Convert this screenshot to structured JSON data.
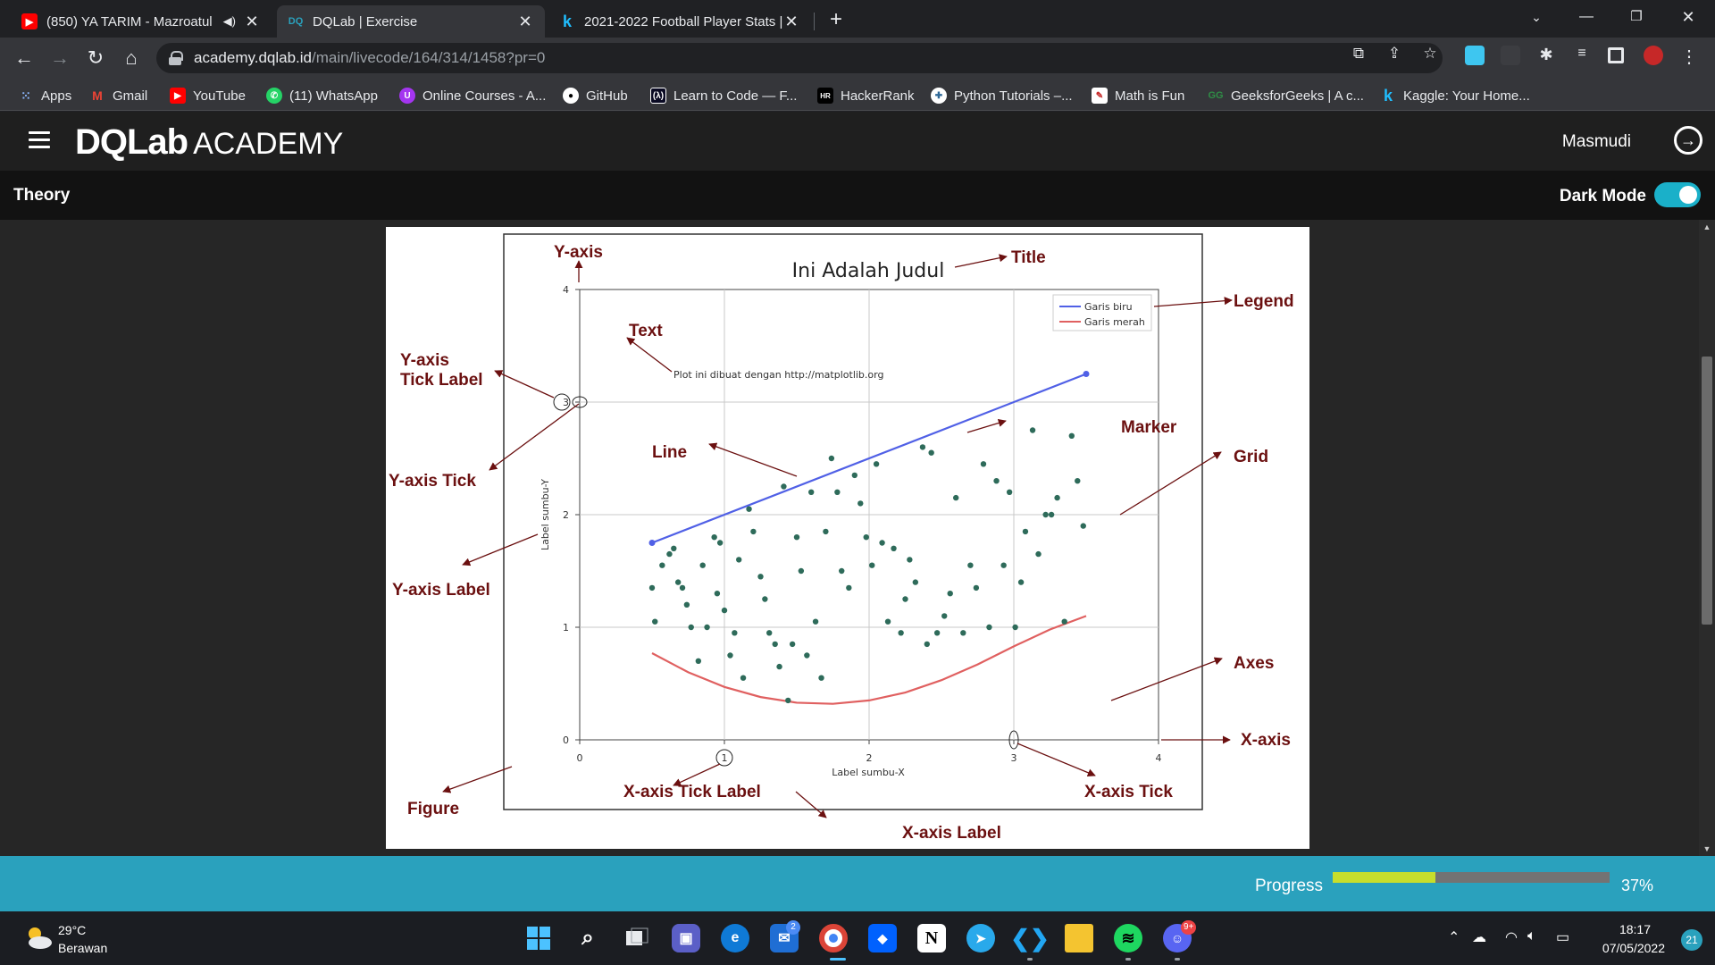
{
  "browser": {
    "tabs": [
      {
        "title": "(850) YA TARIM - Mazroatul",
        "favicon": "youtube-icon",
        "active": false,
        "audio": true
      },
      {
        "title": "DQLab | Exercise",
        "favicon": "dqlab-icon",
        "active": true
      },
      {
        "title": "2021-2022 Football Player Stats |",
        "favicon": "kaggle-icon",
        "active": false
      }
    ],
    "url_host": "academy.dqlab.id",
    "url_path": "/main/livecode/164/314/1458?pr=0",
    "bookmarks": [
      {
        "label": "Apps",
        "icon": "apps-grid-icon"
      },
      {
        "label": "Gmail",
        "icon": "gmail-icon"
      },
      {
        "label": "YouTube",
        "icon": "youtube-icon"
      },
      {
        "label": "(11) WhatsApp",
        "icon": "whatsapp-icon"
      },
      {
        "label": "Online Courses - A...",
        "icon": "udemy-icon"
      },
      {
        "label": "GitHub",
        "icon": "github-icon"
      },
      {
        "label": "Learn to Code — F...",
        "icon": "freecodecamp-icon"
      },
      {
        "label": "HackerRank",
        "icon": "hackerrank-icon"
      },
      {
        "label": "Python Tutorials –...",
        "icon": "python-icon"
      },
      {
        "label": "Math is Fun",
        "icon": "mathisfun-icon"
      },
      {
        "label": "GeeksforGeeks | A c...",
        "icon": "geeksforgeeks-icon"
      },
      {
        "label": "Kaggle: Your Home...",
        "icon": "kaggle-icon"
      }
    ]
  },
  "header": {
    "logo_main": "DQLab",
    "logo_sub": "ACADEMY",
    "user_name": "Masmudi"
  },
  "subheader": {
    "theory_label": "Theory",
    "dark_mode_label": "Dark Mode",
    "dark_mode_on": true
  },
  "figure": {
    "title": "Ini Adalah Judul",
    "xlabel": "Label sumbu-X",
    "ylabel": "Label sumbu-Y",
    "text_note": "Plot ini dibuat dengan http://matplotlib.org",
    "x_ticks": [
      "0",
      "1",
      "2",
      "3",
      "4"
    ],
    "y_ticks": [
      "0",
      "1",
      "2",
      "3",
      "4"
    ],
    "legend": [
      "Garis biru",
      "Garis merah"
    ],
    "annotations": {
      "y_axis": "Y-axis",
      "title": "Title",
      "legend": "Legend",
      "text": "Text",
      "y_tick_label": "Y-axis\nTick Label",
      "marker": "Marker",
      "line": "Line",
      "grid": "Grid",
      "y_tick": "Y-axis Tick",
      "y_label": "Y-axis Label",
      "axes": "Axes",
      "x_axis": "X-axis",
      "x_tick_label": "X-axis Tick Label",
      "x_tick": "X-axis Tick",
      "figure": "Figure",
      "x_label": "X-axis Label"
    },
    "colors": {
      "blue": "#5060e6",
      "red": "#e06060",
      "marker": "#2e6b5a",
      "annot": "#8b1a1a"
    }
  },
  "chart_data": {
    "type": "line",
    "title": "Ini Adalah Judul",
    "xlabel": "Label sumbu-X",
    "ylabel": "Label sumbu-Y",
    "xlim": [
      0,
      4
    ],
    "ylim": [
      0,
      4
    ],
    "grid": true,
    "legend_position": "top-right",
    "series": [
      {
        "name": "Garis biru",
        "type": "line",
        "color": "#5060e6",
        "x": [
          0.5,
          3.5
        ],
        "y": [
          1.75,
          3.25
        ]
      },
      {
        "name": "Garis merah",
        "type": "line",
        "color": "#e06060",
        "x": [
          0.5,
          0.75,
          1.0,
          1.25,
          1.5,
          1.75,
          2.0,
          2.25,
          2.5,
          2.75,
          3.0,
          3.25,
          3.5
        ],
        "y": [
          0.77,
          0.6,
          0.47,
          0.38,
          0.33,
          0.32,
          0.35,
          0.42,
          0.53,
          0.67,
          0.83,
          0.98,
          1.1
        ]
      },
      {
        "name": "",
        "type": "scatter",
        "color": "#2e6b5a",
        "x": [
          0.5,
          0.52,
          0.57,
          0.62,
          0.65,
          0.68,
          0.71,
          0.74,
          0.77,
          0.82,
          0.85,
          0.88,
          0.93,
          0.95,
          0.97,
          1.0,
          1.04,
          1.07,
          1.1,
          1.13,
          1.17,
          1.2,
          1.25,
          1.28,
          1.31,
          1.35,
          1.38,
          1.41,
          1.44,
          1.47,
          1.5,
          1.53,
          1.57,
          1.6,
          1.63,
          1.67,
          1.7,
          1.74,
          1.78,
          1.81,
          1.86,
          1.9,
          1.94,
          1.98,
          2.02,
          2.05,
          2.09,
          2.13,
          2.17,
          2.22,
          2.25,
          2.28,
          2.32,
          2.37,
          2.4,
          2.43,
          2.47,
          2.52,
          2.56,
          2.6,
          2.65,
          2.7,
          2.74,
          2.79,
          2.83,
          2.88,
          2.93,
          2.97,
          3.01,
          3.05,
          3.08,
          3.13,
          3.17,
          3.22,
          3.26,
          3.3,
          3.35,
          3.4,
          3.44,
          3.48
        ],
        "y": [
          1.35,
          1.05,
          1.55,
          1.65,
          1.7,
          1.4,
          1.35,
          1.2,
          1.0,
          0.7,
          1.55,
          1.0,
          1.8,
          1.3,
          1.75,
          1.15,
          0.75,
          0.95,
          1.6,
          0.55,
          2.05,
          1.85,
          1.45,
          1.25,
          0.95,
          0.85,
          0.65,
          2.25,
          0.35,
          0.85,
          1.8,
          1.5,
          0.75,
          2.2,
          1.05,
          0.55,
          1.85,
          2.5,
          2.2,
          1.5,
          1.35,
          2.35,
          2.1,
          1.8,
          1.55,
          2.45,
          1.75,
          1.05,
          1.7,
          0.95,
          1.25,
          1.6,
          1.4,
          2.6,
          0.85,
          2.55,
          0.95,
          1.1,
          1.3,
          2.15,
          0.95,
          1.55,
          1.35,
          2.45,
          1.0,
          2.3,
          1.55,
          2.2,
          1.0,
          1.4,
          1.85,
          2.75,
          1.65,
          2.0,
          2.0,
          2.15,
          1.05,
          2.7,
          2.3,
          1.9
        ]
      }
    ]
  },
  "progress": {
    "label": "Progress",
    "value": 0.37,
    "percent_text": "37%"
  },
  "taskbar": {
    "weather_temp": "29°C",
    "weather_desc": "Berawan",
    "time": "18:17",
    "date": "07/05/2022",
    "notification_count": "21",
    "mail_badge": "2",
    "discord_badge": "9+"
  }
}
